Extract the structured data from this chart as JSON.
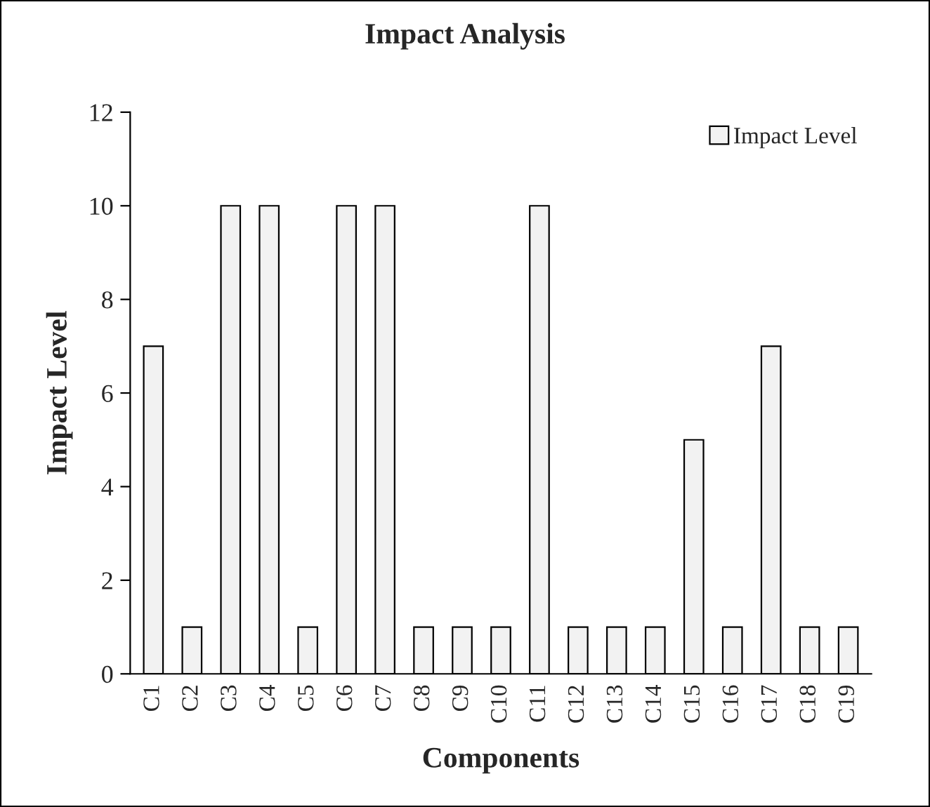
{
  "chart_data": {
    "type": "bar",
    "title": "Impact Analysis",
    "xlabel": "Components",
    "ylabel": "Impact Level",
    "categories": [
      "C1",
      "C2",
      "C3",
      "C4",
      "C5",
      "C6",
      "C7",
      "C8",
      "C9",
      "C10",
      "C11",
      "C12",
      "C13",
      "C14",
      "C15",
      "C16",
      "C17",
      "C18",
      "C19"
    ],
    "series": [
      {
        "name": "Impact Level",
        "color": "#f2f2f2",
        "values": [
          7,
          1,
          10,
          10,
          1,
          10,
          10,
          1,
          1,
          1,
          10,
          1,
          1,
          1,
          5,
          1,
          7,
          1,
          1
        ]
      }
    ],
    "ylim": [
      0,
      12
    ],
    "yticks": [
      0,
      2,
      4,
      6,
      8,
      10,
      12
    ],
    "grid": false,
    "legend": "top right"
  }
}
